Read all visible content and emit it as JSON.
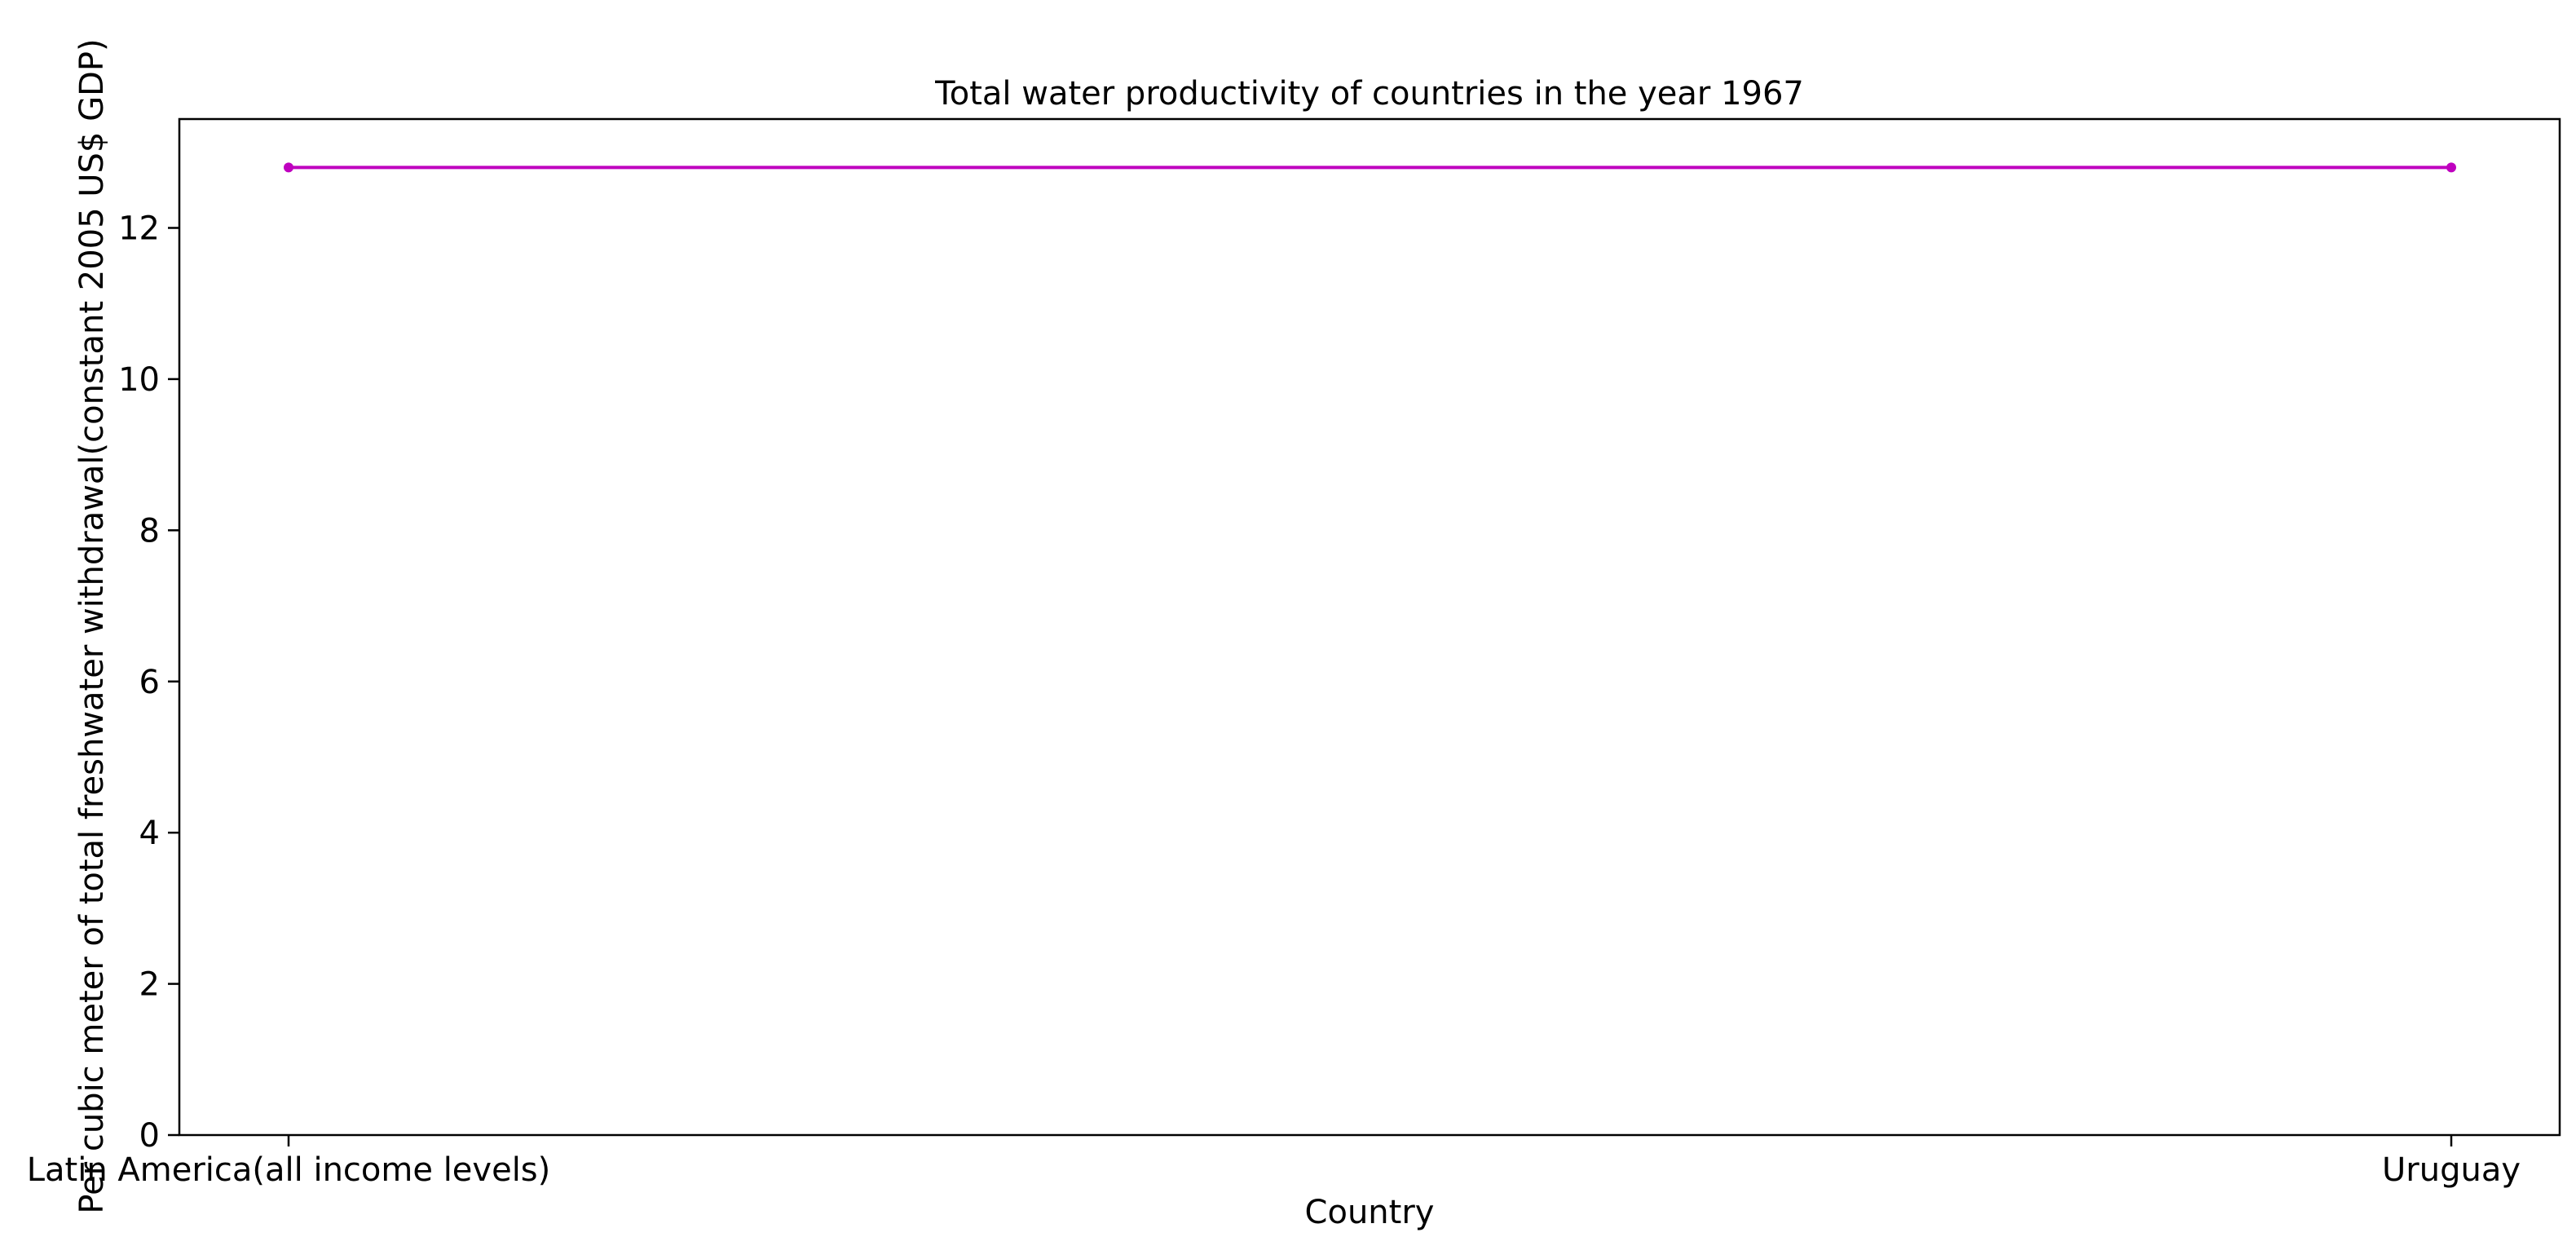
{
  "chart_data": {
    "type": "line",
    "title": "Total water productivity of countries in the year 1967",
    "xlabel": "Country",
    "ylabel": "Per cubic meter of total freshwater withdrawal(constant 2005 US$ GDP)",
    "categories": [
      "Latin America(all income levels)",
      "Uruguay"
    ],
    "series": [
      {
        "values": [
          12.8,
          12.8
        ],
        "color": "#bf00bf",
        "marker": "dot"
      }
    ],
    "ylim": [
      0,
      13.44
    ],
    "yticks": [
      0,
      2,
      4,
      6,
      8,
      10,
      12
    ],
    "grid": false,
    "legend": "none"
  }
}
